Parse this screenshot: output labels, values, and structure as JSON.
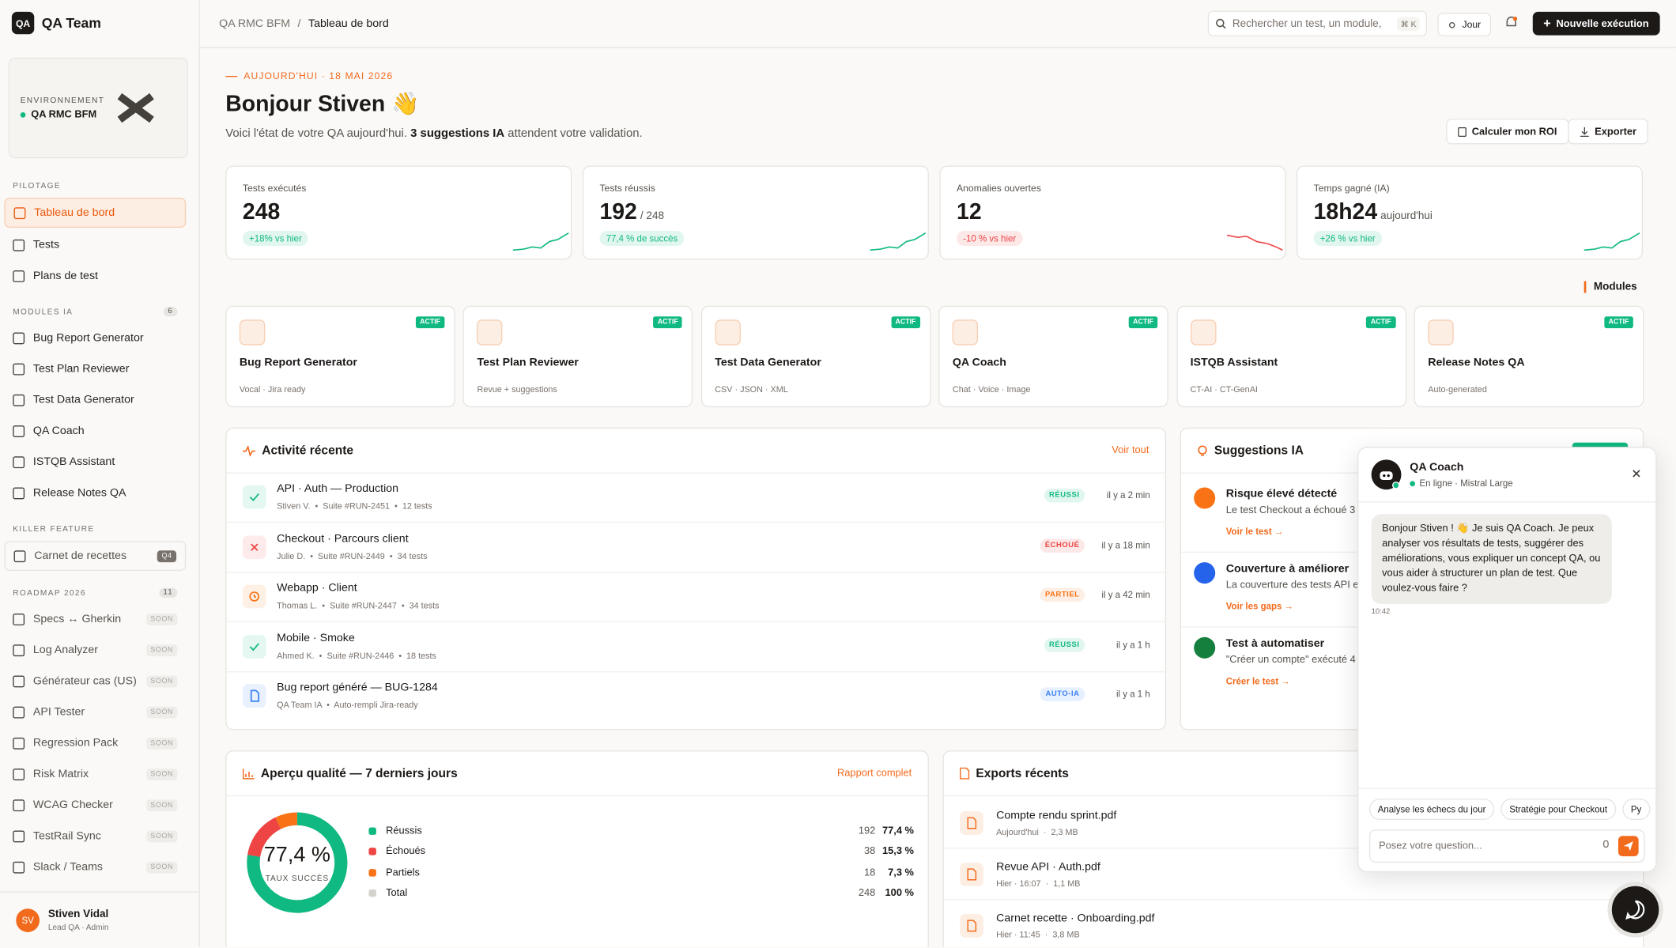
{
  "sidebar": {
    "logo": "QA",
    "brand": "QA Team",
    "env_label": "ENVIRONNEMENT",
    "env_name": "QA RMC BFM",
    "sections": [
      {
        "title": "PILOTAGE",
        "items": [
          {
            "label": "Tableau de bord"
          },
          {
            "label": "Tests"
          },
          {
            "label": "Plans de test"
          }
        ]
      },
      {
        "title": "MODULES IA",
        "badge": "6",
        "items": [
          {
            "label": "Bug Report Generator"
          },
          {
            "label": "Test Plan Reviewer"
          },
          {
            "label": "Test Data Generator"
          },
          {
            "label": "QA Coach"
          },
          {
            "label": "ISTQB Assistant"
          },
          {
            "label": "Release Notes QA"
          }
        ]
      },
      {
        "title": "KILLER FEATURE",
        "items": [
          {
            "label": "Carnet de recettes",
            "tag": "Q4"
          }
        ]
      },
      {
        "title": "ROADMAP 2026",
        "badge": "11",
        "items": [
          {
            "label": "Specs ↔ Gherkin",
            "tag": "SOON"
          },
          {
            "label": "Log Analyzer",
            "tag": "SOON"
          },
          {
            "label": "Générateur cas (US)",
            "tag": "SOON"
          },
          {
            "label": "API Tester",
            "tag": "SOON"
          },
          {
            "label": "Regression Pack",
            "tag": "SOON"
          },
          {
            "label": "Risk Matrix",
            "tag": "SOON"
          },
          {
            "label": "WCAG Checker",
            "tag": "SOON"
          },
          {
            "label": "TestRail Sync",
            "tag": "SOON"
          },
          {
            "label": "Slack / Teams",
            "tag": "SOON"
          }
        ]
      }
    ],
    "user": {
      "initials": "SV",
      "name": "Stiven Vidal",
      "role": "Lead QA · Admin"
    }
  },
  "topbar": {
    "breadcrumb": [
      "QA RMC BFM",
      "Tableau de bord"
    ],
    "search": "Rechercher un test, un module,",
    "shortcut": "⌘ K",
    "theme": "Jour",
    "cta": "Nouvelle exécution"
  },
  "header": {
    "date": "AUJOURD'HUI · 18 MAI 2026",
    "greeting": "Bonjour Stiven 👋",
    "intro_before": "Voici l'état de votre QA aujourd'hui.",
    "intro_bold": "3 suggestions IA",
    "intro_after": "attendent votre validation.",
    "buttons": [
      "Calculer mon ROI",
      "Exporter"
    ]
  },
  "kpis": [
    {
      "label": "Tests exécutés",
      "value": "248",
      "delta": "+18% vs hier",
      "color": "#10b981"
    },
    {
      "label": "Tests réussis",
      "value": "192",
      "suffix": "/ 248",
      "delta": "77,4 % de succès",
      "color": "#10b981"
    },
    {
      "label": "Anomalies ouvertes",
      "value": "12",
      "delta": "-10 % vs hier",
      "color": "#ef4444"
    },
    {
      "label": "Temps gagné (IA)",
      "value": "18h24",
      "suffix": "aujourd'hui",
      "delta": "+26 % vs hier",
      "color": "#10b981"
    }
  ],
  "modules": {
    "title": "Modules",
    "items": [
      {
        "name": "Bug Report Generator",
        "desc": "Vocal · Jira ready",
        "badge": "ACTIF"
      },
      {
        "name": "Test Plan Reviewer",
        "desc": "Revue + suggestions",
        "badge": "ACTIF"
      },
      {
        "name": "Test Data Generator",
        "desc": "CSV · JSON · XML",
        "badge": "ACTIF"
      },
      {
        "name": "QA Coach",
        "desc": "Chat · Voice · Image",
        "badge": "ACTIF"
      },
      {
        "name": "ISTQB Assistant",
        "desc": "CT-AI · CT-GenAI",
        "badge": "ACTIF"
      },
      {
        "name": "Release Notes QA",
        "desc": "Auto-generated",
        "badge": "ACTIF"
      }
    ]
  },
  "activity": {
    "title": "Activité récente",
    "link": "Voir tout",
    "rows": [
      {
        "title": "API · Auth — Production",
        "meta": "Stiven V.  •  Suite #RUN-2451  •  12 tests",
        "status": "RÉUSSI",
        "time": "il y a 2 min",
        "color": "#10b981"
      },
      {
        "title": "Checkout · Parcours client",
        "meta": "Julie D.  •  Suite #RUN-2449  •  34 tests",
        "status": "ÉCHOUÉ",
        "time": "il y a 18 min",
        "color": "#ef4444"
      },
      {
        "title": "Webapp · Client",
        "meta": "Thomas L.  •  Suite #RUN-2447  •  34 tests",
        "status": "PARTIEL",
        "time": "il y a 42 min",
        "color": "#f97316"
      },
      {
        "title": "Mobile · Smoke",
        "meta": "Ahmed K.  •  Suite #RUN-2446  •  18 tests",
        "status": "RÉUSSI",
        "time": "il y a 1 h",
        "color": "#10b981"
      },
      {
        "title": "Bug report généré — BUG-1284",
        "meta": "QA Team IA  •  Auto-rempli Jira-ready",
        "status": "AUTO-IA",
        "time": "il y a 1 h",
        "color": "#3b82f6"
      }
    ]
  },
  "suggestions": {
    "title": "Suggestions IA",
    "items": [
      {
        "title": "Risque élevé détecté",
        "text": "Le test Checkout a échoué 3",
        "link": "Voir le test →",
        "color": "#f97316"
      },
      {
        "title": "Couverture à améliorer",
        "text": "La couverture des tests API e",
        "link": "Voir les gaps →",
        "color": "#2563eb"
      },
      {
        "title": "Test à automatiser",
        "text": "\"Créer un compte\" exécuté 4",
        "link": "Créer le test →",
        "color": "#15803d"
      }
    ]
  },
  "quality": {
    "title": "Aperçu qualité — 7 derniers jours",
    "link": "Rapport complet",
    "center_value": "77,4 %",
    "center_label": "TAUX SUCCÈS",
    "items": [
      {
        "label": "Réussis",
        "count": 192,
        "pct": "77,4 %",
        "color": "#10b981"
      },
      {
        "label": "Échoués",
        "count": 38,
        "pct": "15,3 %",
        "color": "#ef4444"
      },
      {
        "label": "Partiels",
        "count": 18,
        "pct": "7,3 %",
        "color": "#f97316"
      },
      {
        "label": "Total",
        "count": 248,
        "pct": "100 %",
        "color": "#d6d3ce"
      }
    ]
  },
  "exports": {
    "title": "Exports récents",
    "items": [
      {
        "name": "Compte rendu sprint.pdf",
        "meta": "Aujourd'hui  ·  2,3 MB"
      },
      {
        "name": "Revue API · Auth.pdf",
        "meta": "Hier · 16:07  ·  1,1 MB"
      },
      {
        "name": "Carnet recette · Onboarding.pdf",
        "meta": "Hier · 11:45  ·  3,8 MB"
      }
    ]
  },
  "chat": {
    "title": "QA Coach",
    "status": "En ligne · Mistral Large",
    "message": "Bonjour Stiven ! 👋 Je suis QA Coach. Je peux analyser vos résultats de tests, suggérer des améliorations, vous expliquer un concept QA, ou vous aider à structurer un plan de test. Que voulez-vous faire ?",
    "time": "10:42",
    "chips": [
      "Analyse les échecs du jour",
      "Stratégie pour Checkout",
      "Py"
    ],
    "placeholder": "Posez votre question..."
  }
}
